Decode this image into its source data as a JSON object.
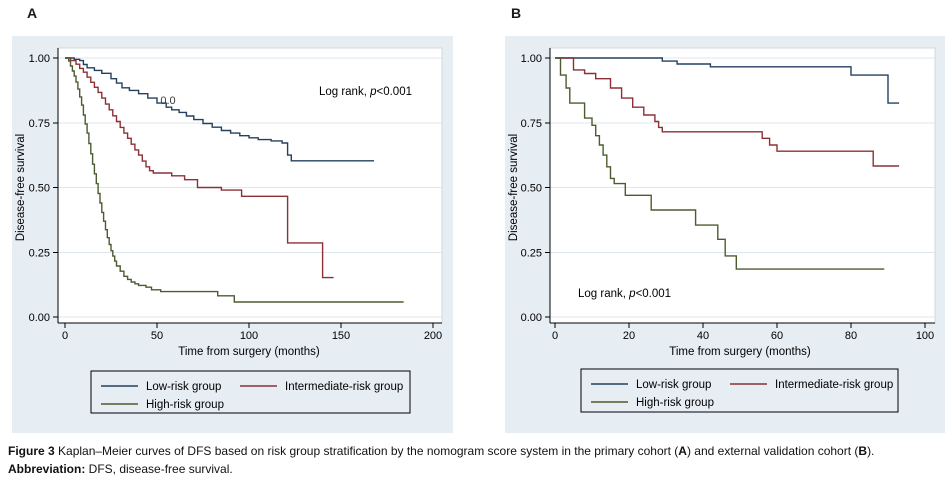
{
  "figure": {
    "background_color": "#e6edf3",
    "plot_background_color": "#ffffff",
    "grid_color": "#dfe5ec",
    "axis_color": "#000000",
    "panels": [
      {
        "label": "A"
      },
      {
        "label": "B"
      }
    ],
    "legend_labels": [
      "Low-risk group",
      "Intermediate-risk group",
      "High-risk group"
    ]
  },
  "chart_data": [
    {
      "type": "line",
      "step": true,
      "panel_label": "A",
      "xlabel": "Time from surgery (months)",
      "ylabel": "Disease-free survival",
      "xlim": [
        0,
        200
      ],
      "ylim": [
        0,
        1
      ],
      "xticks": [
        0,
        50,
        100,
        150,
        200
      ],
      "yticks": [
        {
          "v": 1.0,
          "label": "1.00"
        },
        {
          "v": 0.75,
          "label": "0.75"
        },
        {
          "v": 0.5,
          "label": "0.50"
        },
        {
          "v": 0.25,
          "label": "0.25"
        },
        {
          "v": 0.0,
          "label": "0.00"
        }
      ],
      "grid": true,
      "legend_position": "bottom",
      "annotation": {
        "text": "Log rank, p<0.001",
        "prefix": "Log rank, ",
        "italic": "p",
        "suffix": "<0.001",
        "position": "top-right"
      },
      "extra_label": {
        "text": "0.0",
        "position": "on-low-risk-curve"
      },
      "series": [
        {
          "name": "Low-risk group",
          "color": "#23405f",
          "points": [
            [
              0,
              1.0
            ],
            [
              5,
              0.995
            ],
            [
              8,
              0.99
            ],
            [
              10,
              0.975
            ],
            [
              12,
              0.962
            ],
            [
              16,
              0.952
            ],
            [
              20,
              0.941
            ],
            [
              25,
              0.92
            ],
            [
              28,
              0.903
            ],
            [
              31,
              0.885
            ],
            [
              35,
              0.875
            ],
            [
              40,
              0.862
            ],
            [
              45,
              0.845
            ],
            [
              50,
              0.826
            ],
            [
              55,
              0.81
            ],
            [
              58,
              0.8
            ],
            [
              62,
              0.79
            ],
            [
              66,
              0.776
            ],
            [
              70,
              0.762
            ],
            [
              75,
              0.747
            ],
            [
              80,
              0.733
            ],
            [
              85,
              0.72
            ],
            [
              90,
              0.71
            ],
            [
              95,
              0.7
            ],
            [
              100,
              0.692
            ],
            [
              105,
              0.685
            ],
            [
              112,
              0.68
            ],
            [
              118,
              0.672
            ],
            [
              121,
              0.625
            ],
            [
              123,
              0.603
            ],
            [
              168,
              0.603
            ]
          ]
        },
        {
          "name": "Intermediate-risk group",
          "color": "#8c3036",
          "points": [
            [
              0,
              1.0
            ],
            [
              3,
              0.99
            ],
            [
              6,
              0.976
            ],
            [
              8,
              0.96
            ],
            [
              10,
              0.945
            ],
            [
              12,
              0.926
            ],
            [
              14,
              0.906
            ],
            [
              16,
              0.887
            ],
            [
              18,
              0.867
            ],
            [
              20,
              0.845
            ],
            [
              22,
              0.822
            ],
            [
              24,
              0.8
            ],
            [
              26,
              0.777
            ],
            [
              28,
              0.755
            ],
            [
              30,
              0.732
            ],
            [
              32,
              0.71
            ],
            [
              34,
              0.69
            ],
            [
              36,
              0.667
            ],
            [
              38,
              0.645
            ],
            [
              40,
              0.625
            ],
            [
              42,
              0.602
            ],
            [
              44,
              0.58
            ],
            [
              46,
              0.565
            ],
            [
              48,
              0.556
            ],
            [
              58,
              0.545
            ],
            [
              65,
              0.53
            ],
            [
              72,
              0.5
            ],
            [
              85,
              0.49
            ],
            [
              96,
              0.466
            ],
            [
              121,
              0.286
            ],
            [
              140,
              0.152
            ],
            [
              146,
              0.152
            ]
          ]
        },
        {
          "name": "High-risk group",
          "color": "#4c5c30",
          "points": [
            [
              0,
              1.0
            ],
            [
              2,
              0.988
            ],
            [
              3,
              0.969
            ],
            [
              4,
              0.95
            ],
            [
              5,
              0.93
            ],
            [
              6,
              0.907
            ],
            [
              7,
              0.88
            ],
            [
              8,
              0.85
            ],
            [
              9,
              0.818
            ],
            [
              10,
              0.78
            ],
            [
              11,
              0.745
            ],
            [
              12,
              0.71
            ],
            [
              13,
              0.67
            ],
            [
              14,
              0.63
            ],
            [
              15,
              0.59
            ],
            [
              16,
              0.553
            ],
            [
              17,
              0.515
            ],
            [
              18,
              0.477
            ],
            [
              19,
              0.44
            ],
            [
              20,
              0.404
            ],
            [
              21,
              0.37
            ],
            [
              22,
              0.337
            ],
            [
              23,
              0.306
            ],
            [
              24,
              0.28
            ],
            [
              25,
              0.256
            ],
            [
              26,
              0.235
            ],
            [
              27,
              0.216
            ],
            [
              28,
              0.197
            ],
            [
              30,
              0.177
            ],
            [
              32,
              0.157
            ],
            [
              34,
              0.145
            ],
            [
              36,
              0.135
            ],
            [
              38,
              0.128
            ],
            [
              40,
              0.122
            ],
            [
              44,
              0.115
            ],
            [
              47,
              0.105
            ],
            [
              52,
              0.098
            ],
            [
              83,
              0.082
            ],
            [
              92,
              0.058
            ],
            [
              184,
              0.058
            ]
          ]
        }
      ]
    },
    {
      "type": "line",
      "step": true,
      "panel_label": "B",
      "xlabel": "Time from surgery (months)",
      "ylabel": "Disease-free survival",
      "xlim": [
        0,
        100
      ],
      "ylim": [
        0,
        1
      ],
      "xticks": [
        0,
        20,
        40,
        60,
        80,
        100
      ],
      "yticks": [
        {
          "v": 1.0,
          "label": "1.00"
        },
        {
          "v": 0.75,
          "label": "0.75"
        },
        {
          "v": 0.5,
          "label": "0.50"
        },
        {
          "v": 0.25,
          "label": "0.25"
        },
        {
          "v": 0.0,
          "label": "0.00"
        }
      ],
      "grid": true,
      "legend_position": "bottom",
      "annotation": {
        "text": "Log rank, p<0.001",
        "prefix": "Log rank, ",
        "italic": "p",
        "suffix": "<0.001",
        "position": "bottom-left"
      },
      "series": [
        {
          "name": "Low-risk group",
          "color": "#23405f",
          "points": [
            [
              0,
              1.0
            ],
            [
              29,
              0.988
            ],
            [
              33,
              0.977
            ],
            [
              42,
              0.966
            ],
            [
              80,
              0.934
            ],
            [
              90,
              0.826
            ],
            [
              93,
              0.826
            ]
          ]
        },
        {
          "name": "Intermediate-risk group",
          "color": "#8c3036",
          "points": [
            [
              0,
              1.0
            ],
            [
              5,
              0.954
            ],
            [
              8,
              0.94
            ],
            [
              11,
              0.92
            ],
            [
              15,
              0.884
            ],
            [
              18,
              0.845
            ],
            [
              21,
              0.81
            ],
            [
              24,
              0.78
            ],
            [
              27,
              0.755
            ],
            [
              28,
              0.732
            ],
            [
              29,
              0.715
            ],
            [
              56,
              0.69
            ],
            [
              58,
              0.664
            ],
            [
              60,
              0.64
            ],
            [
              86,
              0.583
            ],
            [
              93,
              0.583
            ]
          ]
        },
        {
          "name": "High-risk group",
          "color": "#4c5c30",
          "points": [
            [
              0,
              1.0
            ],
            [
              1.5,
              0.934
            ],
            [
              3,
              0.884
            ],
            [
              4,
              0.826
            ],
            [
              8,
              0.768
            ],
            [
              10,
              0.74
            ],
            [
              11,
              0.7
            ],
            [
              12,
              0.664
            ],
            [
              13,
              0.625
            ],
            [
              14,
              0.58
            ],
            [
              15,
              0.535
            ],
            [
              16,
              0.515
            ],
            [
              19,
              0.47
            ],
            [
              26,
              0.413
            ],
            [
              38,
              0.355
            ],
            [
              44,
              0.3
            ],
            [
              46,
              0.236
            ],
            [
              49,
              0.185
            ],
            [
              89,
              0.185
            ]
          ]
        }
      ]
    }
  ],
  "caption": {
    "line1_parts": [
      {
        "t": "Figure 3 ",
        "b": true
      },
      {
        "t": "Kaplan–Meier curves of DFS based on risk group stratification by the nomogram score system in the primary cohort ("
      },
      {
        "t": "A",
        "b": true
      },
      {
        "t": ") and external validation cohort ("
      },
      {
        "t": "B",
        "b": true
      },
      {
        "t": ")."
      }
    ],
    "line2_parts": [
      {
        "t": "Abbreviation: ",
        "b": true
      },
      {
        "t": "DFS, disease-free survival."
      }
    ]
  }
}
